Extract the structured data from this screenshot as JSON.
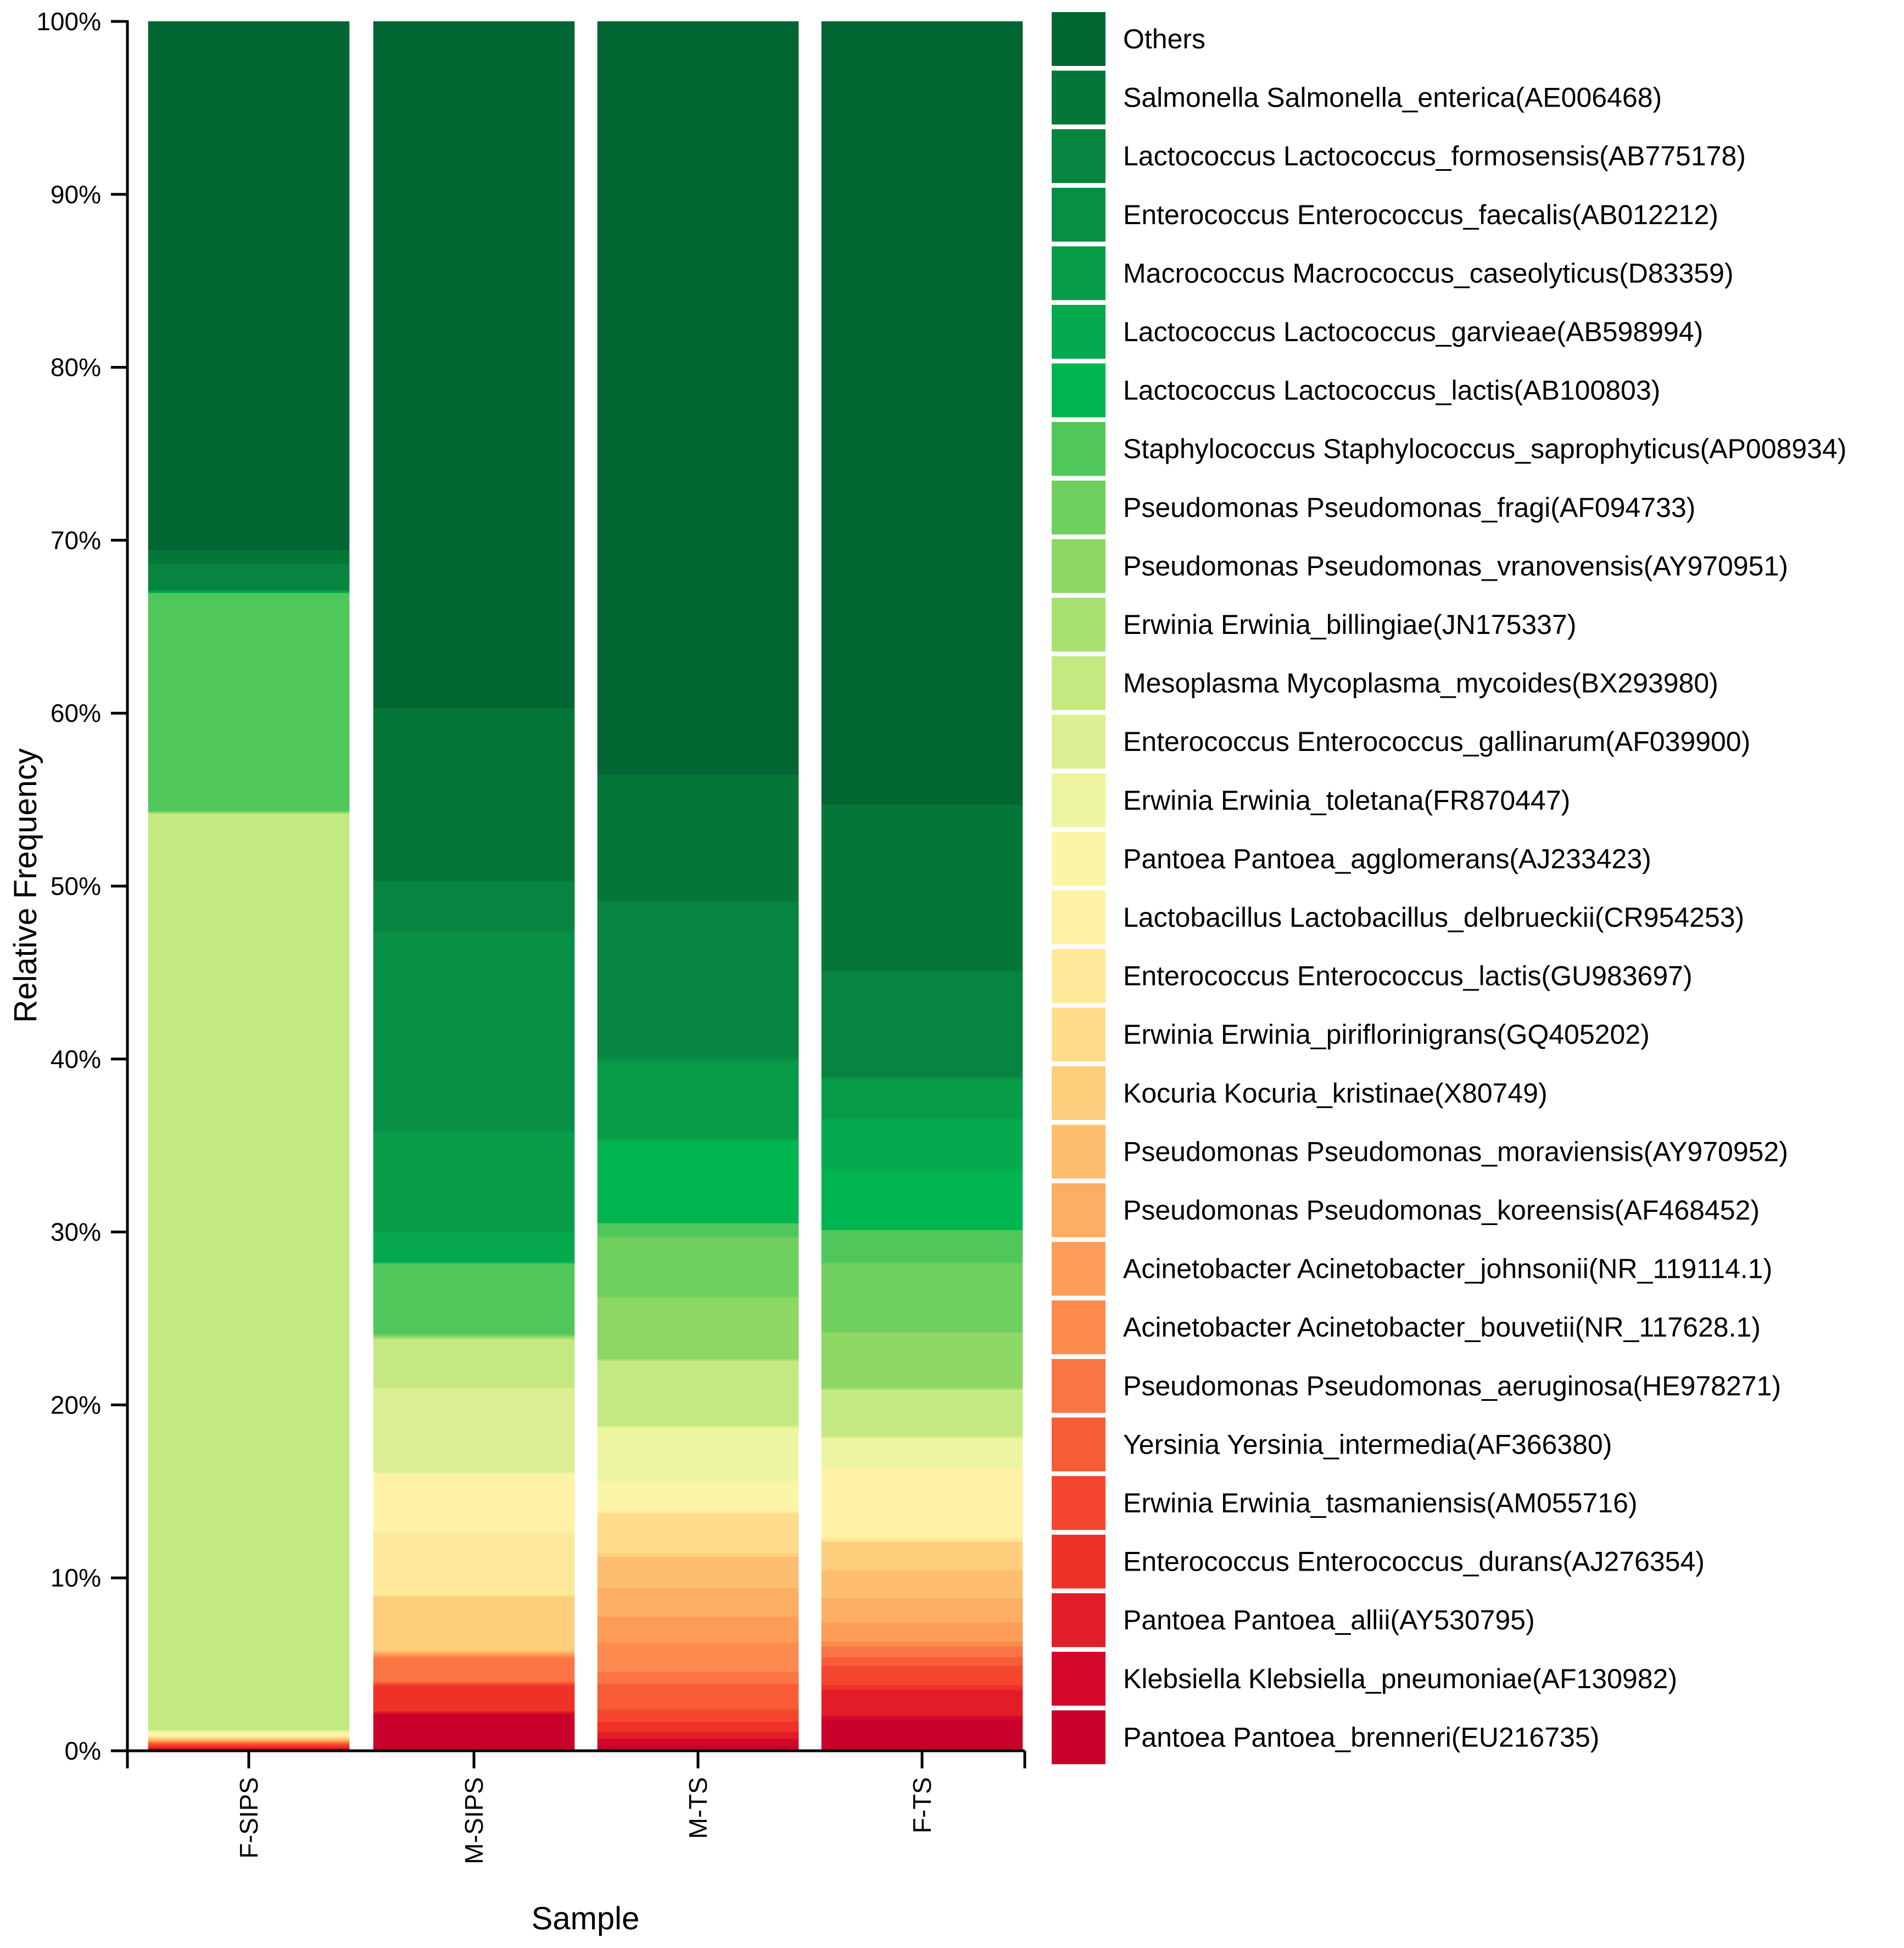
{
  "chart_data": {
    "type": "bar",
    "stacked": true,
    "percent": true,
    "xlabel": "Sample",
    "ylabel": "Relative Frequency",
    "ylim": [
      0,
      100
    ],
    "yticks": [
      "0%",
      "10%",
      "20%",
      "30%",
      "40%",
      "50%",
      "60%",
      "70%",
      "80%",
      "90%",
      "100%"
    ],
    "grid": false,
    "legend_position": "right",
    "categories": [
      "F-SIPS",
      "M-SIPS",
      "M-TS",
      "F-TS"
    ],
    "series": [
      {
        "name": "Pantoea Pantoea_brenneri(EU216735)",
        "color": "#c8002a",
        "values": [
          0.1,
          2.1,
          0.3,
          1.8
        ]
      },
      {
        "name": "Klebsiella Klebsiella_pneumoniae(AF130982)",
        "color": "#d6082a",
        "values": [
          0.05,
          0.1,
          0.4,
          0.2
        ]
      },
      {
        "name": "Pantoea Pantoea_allii(AY530795)",
        "color": "#e31d27",
        "values": [
          0.05,
          0.1,
          0.4,
          1.5
        ]
      },
      {
        "name": "Enterococcus Enterococcus_durans(AJ276354)",
        "color": "#ef3128",
        "values": [
          0.1,
          1.5,
          0.6,
          0.3
        ]
      },
      {
        "name": "Erwinia Erwinia_tasmaniensis(AM055716)",
        "color": "#f4462f",
        "values": [
          0.1,
          0.1,
          0.7,
          1.1
        ]
      },
      {
        "name": "Yersinia Yersinia_intermedia(AF366380)",
        "color": "#f85c37",
        "values": [
          0.05,
          0.1,
          1.5,
          0.5
        ]
      },
      {
        "name": "Pseudomonas Pseudomonas_aeruginosa(HE978271)",
        "color": "#fb7444",
        "values": [
          0.05,
          1.4,
          0.7,
          0.6
        ]
      },
      {
        "name": "Acinetobacter Acinetobacter_bouvetii(NR_117628.1)",
        "color": "#fd8a4e",
        "values": [
          0.05,
          0.1,
          1.7,
          0.3
        ]
      },
      {
        "name": "Acinetobacter Acinetobacter_johnsonii(NR_119114.1)",
        "color": "#fd9d58",
        "values": [
          0.05,
          0.1,
          1.5,
          1.1
        ]
      },
      {
        "name": "Pseudomonas Pseudomonas_koreensis(AF468452)",
        "color": "#fdad64",
        "values": [
          0.05,
          0.1,
          1.7,
          1.4
        ]
      },
      {
        "name": "Pseudomonas Pseudomonas_moraviensis(AY970952)",
        "color": "#fdbf6f",
        "values": [
          0.05,
          0.1,
          1.8,
          1.6
        ]
      },
      {
        "name": "Kocuria Kocuria_kristinae(X80749)",
        "color": "#fece7c",
        "values": [
          0.05,
          3.1,
          0.2,
          1.6
        ]
      },
      {
        "name": "Erwinia Erwinia_piriflorinigrans(GQ405202)",
        "color": "#fedc8a",
        "values": [
          0.05,
          0.1,
          2.3,
          0.1
        ]
      },
      {
        "name": "Enterococcus Enterococcus_lactis(GU983697)",
        "color": "#fee89a",
        "values": [
          0.05,
          3.6,
          0.1,
          0.2
        ]
      },
      {
        "name": "Lactobacillus Lactobacillus_delbrueckii(CR954253)",
        "color": "#fef2a6",
        "values": [
          0.05,
          3.3,
          0.3,
          3.9
        ]
      },
      {
        "name": "Pantoea Pantoea_agglomerans(AJ233423)",
        "color": "#fbf5a6",
        "values": [
          0.2,
          0.1,
          1.5,
          0.1
        ]
      },
      {
        "name": "Erwinia Erwinia_toletana(FR870447)",
        "color": "#eef5a0",
        "values": [
          0.05,
          0.1,
          3.1,
          1.7
        ]
      },
      {
        "name": "Enterococcus Enterococcus_gallinarum(AF039900)",
        "color": "#daf092",
        "values": [
          0.05,
          4.9,
          0.1,
          0.1
        ]
      },
      {
        "name": "Mesoplasma Mycoplasma_mycoides(BX293980)",
        "color": "#c3e980",
        "values": [
          53.4,
          2.8,
          3.8,
          2.7
        ]
      },
      {
        "name": "Erwinia Erwinia_billingiae(JN175337)",
        "color": "#a8e070",
        "values": [
          0.05,
          0.1,
          0.1,
          0.1
        ]
      },
      {
        "name": "Pseudomonas Pseudomonas_vranovensis(AY970951)",
        "color": "#8dd764",
        "values": [
          0.05,
          0.1,
          3.6,
          3.2
        ]
      },
      {
        "name": "Pseudomonas Pseudomonas_fragi(AF094733)",
        "color": "#6fcf5c",
        "values": [
          0.05,
          0.1,
          3.5,
          4.0
        ]
      },
      {
        "name": "Staphylococcus Staphylococcus_saprophyticus(AP008934)",
        "color": "#50c75a",
        "values": [
          12.7,
          4.1,
          0.8,
          1.9
        ]
      },
      {
        "name": "Lactococcus Lactococcus_lactis(AB100803)",
        "color": "#00b54f",
        "values": [
          0.05,
          0.1,
          4.8,
          3.5
        ]
      },
      {
        "name": "Lactococcus Lactococcus_garvieae(AB598994)",
        "color": "#06a94e",
        "values": [
          0.05,
          1.7,
          0.1,
          2.9
        ]
      },
      {
        "name": "Macrococcus Macrococcus_caseolyticus(D83359)",
        "color": "#089c49",
        "values": [
          0.05,
          5.8,
          4.5,
          2.3
        ]
      },
      {
        "name": "Enterococcus Enterococcus_faecalis(AB012212)",
        "color": "#079045",
        "values": [
          0.05,
          11.6,
          0.3,
          0.1
        ]
      },
      {
        "name": "Lactococcus Lactococcus_formosensis(AB775178)",
        "color": "#07843f",
        "values": [
          1.5,
          2.9,
          9.0,
          6.1
        ]
      },
      {
        "name": "Salmonella Salmonella_enterica(AE006468)",
        "color": "#047738",
        "values": [
          0.8,
          10.0,
          7.4,
          9.6
        ]
      },
      {
        "name": "Others",
        "color": "#006632",
        "values": [
          30.8,
          39.7,
          43.8,
          45.1
        ]
      }
    ]
  }
}
